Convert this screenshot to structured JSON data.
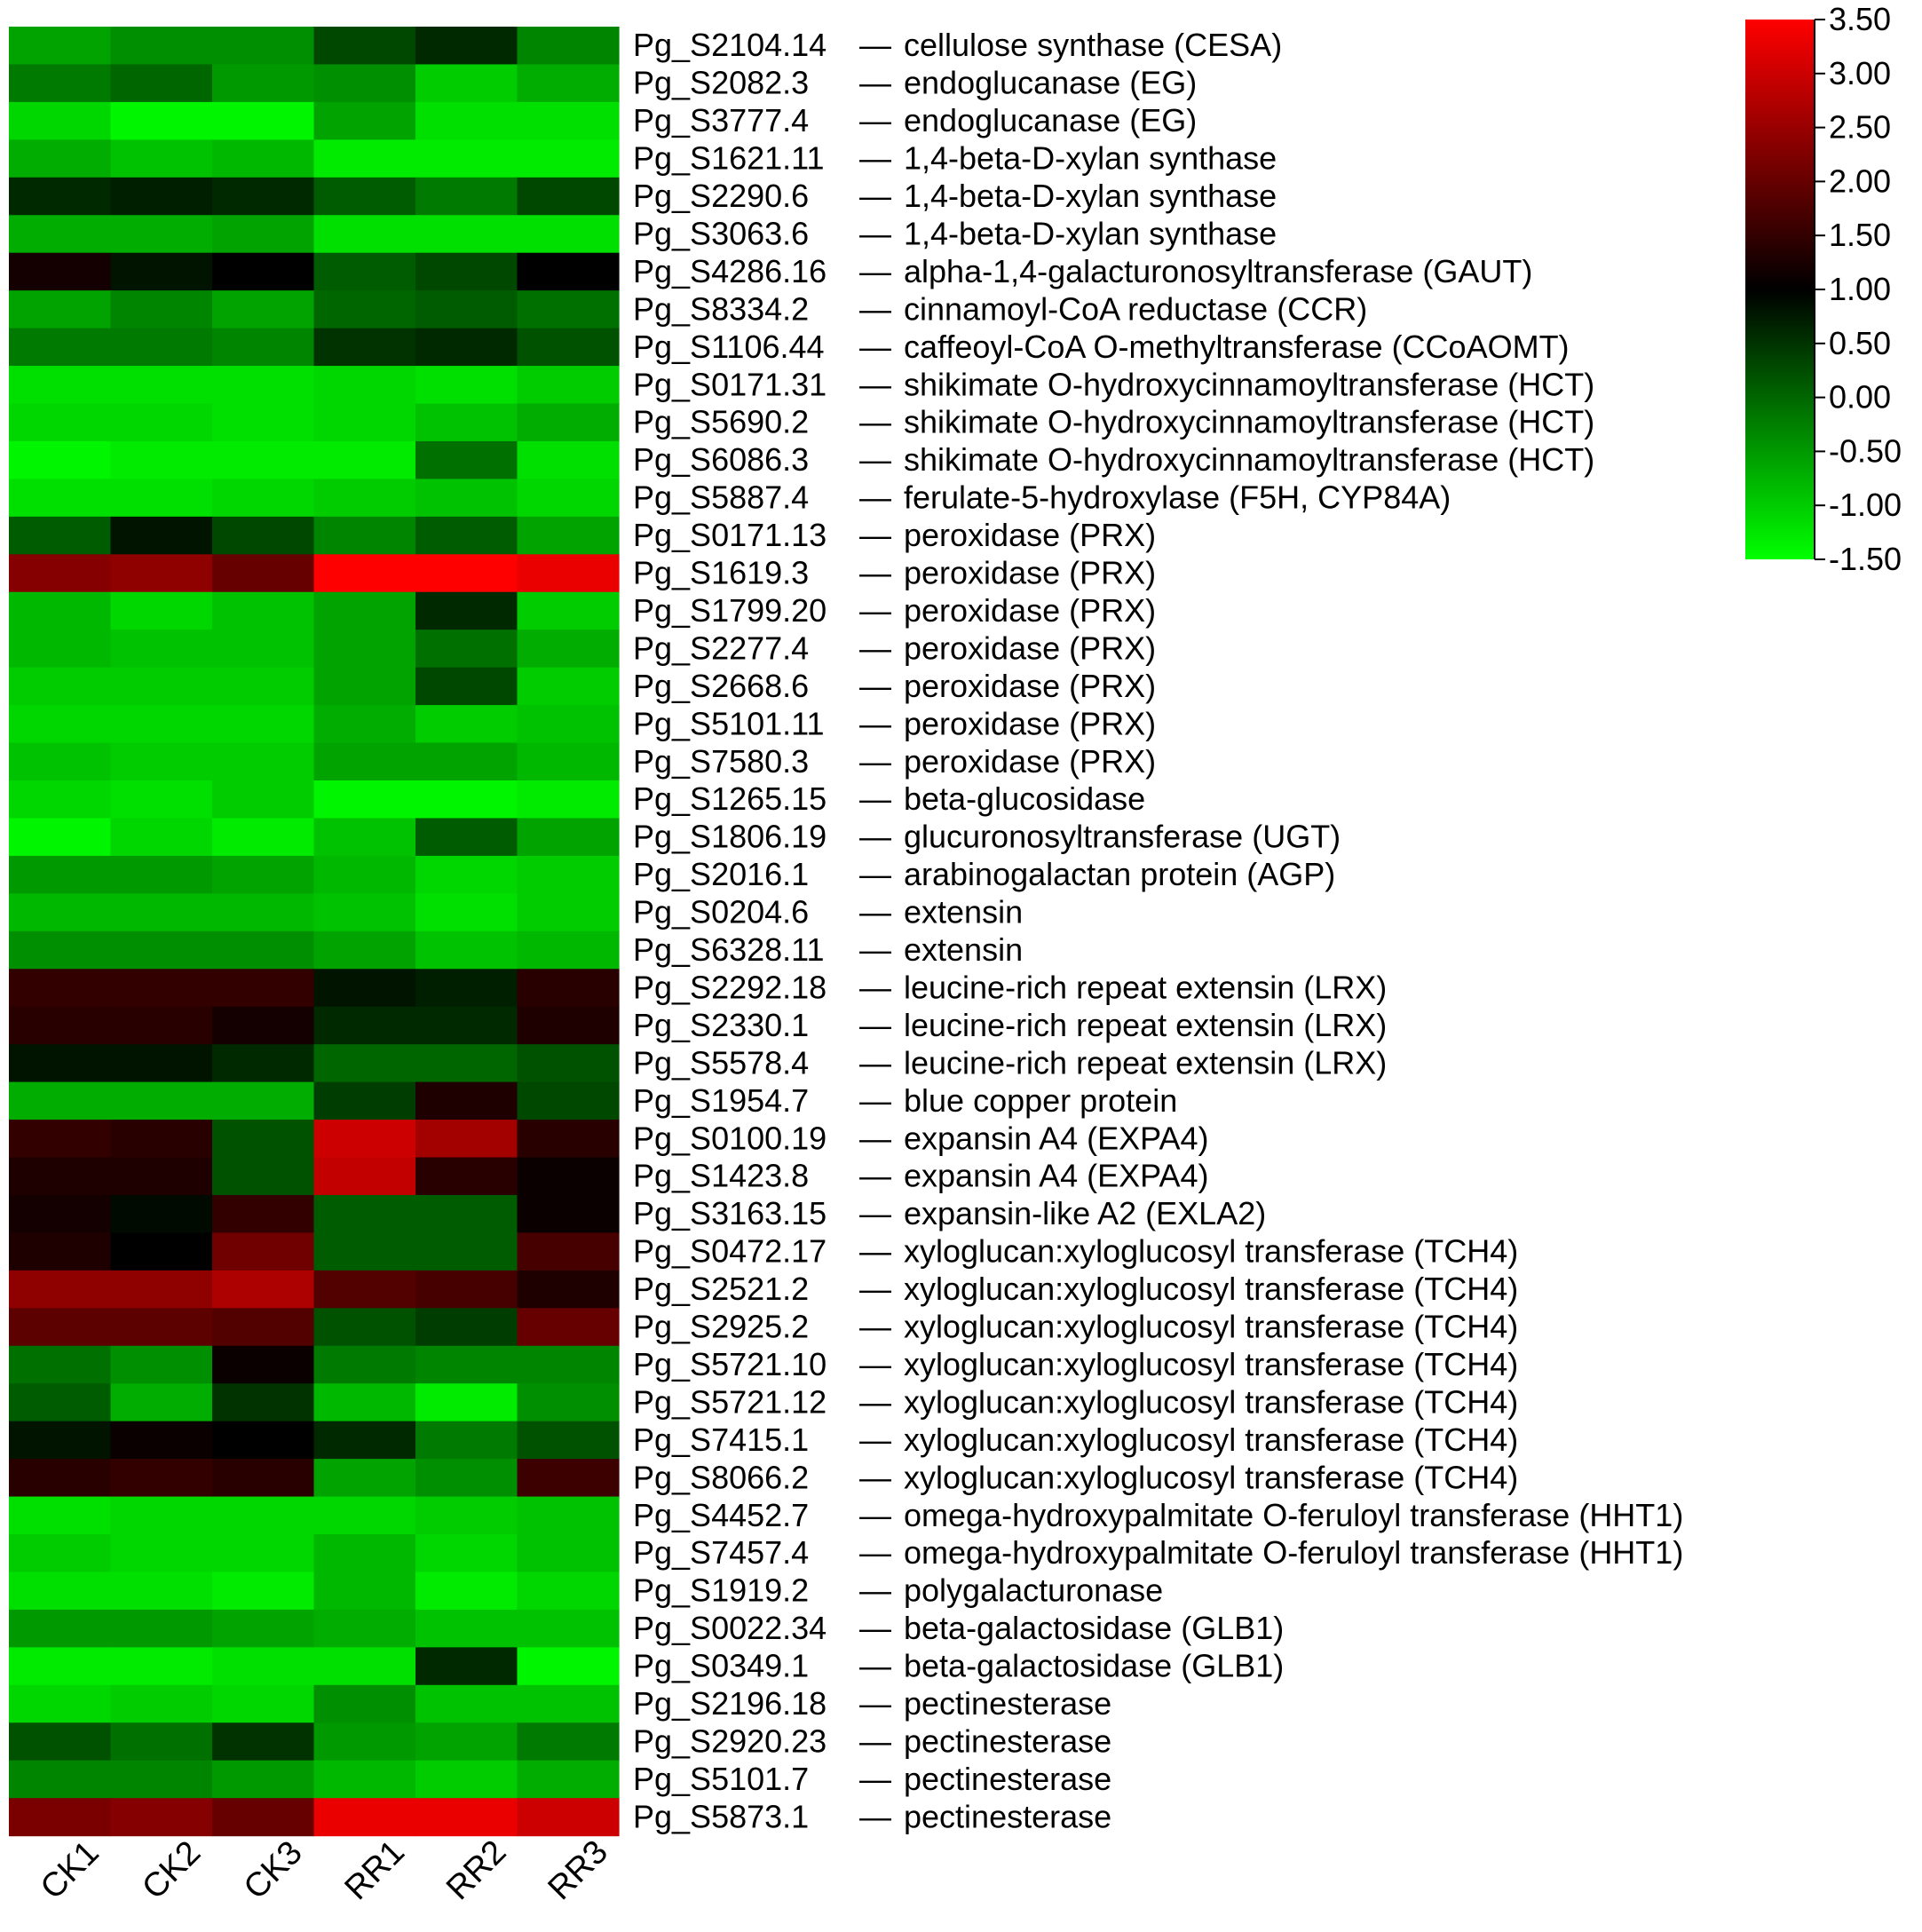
{
  "chart_data": {
    "type": "heatmap",
    "title": "",
    "xlabel": "",
    "ylabel": "",
    "columns": [
      "CK1",
      "CK2",
      "CK3",
      "RR1",
      "RR2",
      "RR3"
    ],
    "rows": [
      {
        "id": "Pg_S2104.14",
        "annotation": "cellulose synthase (CESA)",
        "values": [
          -0.6,
          -0.4,
          -0.4,
          0.3,
          0.6,
          -0.3
        ]
      },
      {
        "id": "Pg_S2082.3",
        "annotation": "endoglucanase (EG)",
        "values": [
          -0.2,
          0.0,
          -0.5,
          -0.4,
          -1.0,
          -0.7
        ]
      },
      {
        "id": "Pg_S3777.4",
        "annotation": "endoglucanase (EG)",
        "values": [
          -1.1,
          -1.4,
          -1.4,
          -0.6,
          -1.2,
          -1.2
        ]
      },
      {
        "id": "Pg_S1621.11",
        "annotation": "1,4-beta-D-xylan synthase",
        "values": [
          -0.7,
          -0.9,
          -0.8,
          -1.3,
          -1.3,
          -1.3
        ]
      },
      {
        "id": "Pg_S2290.6",
        "annotation": "1,4-beta-D-xylan synthase",
        "values": [
          0.6,
          0.7,
          0.6,
          0.1,
          -0.2,
          0.3
        ]
      },
      {
        "id": "Pg_S3063.6",
        "annotation": "1,4-beta-D-xylan synthase",
        "values": [
          -0.7,
          -0.7,
          -0.6,
          -1.2,
          -1.2,
          -1.2
        ]
      },
      {
        "id": "Pg_S4286.16",
        "annotation": "alpha-1,4-galacturonosyltransferase (GAUT)",
        "values": [
          1.2,
          0.8,
          1.0,
          0.1,
          0.3,
          1.0
        ]
      },
      {
        "id": "Pg_S8334.2",
        "annotation": "cinnamoyl-CoA reductase (CCR)",
        "values": [
          -0.6,
          -0.3,
          -0.6,
          0.0,
          0.1,
          -0.1
        ]
      },
      {
        "id": "Pg_S1106.44",
        "annotation": "caffeoyl-CoA O-methyltransferase (CCoAOMT)",
        "values": [
          -0.2,
          -0.2,
          -0.3,
          0.5,
          0.6,
          0.2
        ]
      },
      {
        "id": "Pg_S0171.31",
        "annotation": "shikimate O-hydroxycinnamoyltransferase (HCT)",
        "values": [
          -1.2,
          -1.2,
          -1.2,
          -1.1,
          -1.2,
          -1.0
        ]
      },
      {
        "id": "Pg_S5690.2",
        "annotation": "shikimate O-hydroxycinnamoyltransferase (HCT)",
        "values": [
          -1.1,
          -1.1,
          -1.2,
          -1.1,
          -0.9,
          -0.7
        ]
      },
      {
        "id": "Pg_S6086.3",
        "annotation": "shikimate O-hydroxycinnamoyltransferase (HCT)",
        "values": [
          -1.4,
          -1.3,
          -1.3,
          -1.3,
          -0.1,
          -1.2
        ]
      },
      {
        "id": "Pg_S5887.4",
        "annotation": "ferulate-5-hydroxylase (F5H, CYP84A)",
        "values": [
          -1.2,
          -1.2,
          -1.1,
          -1.0,
          -0.9,
          -1.1
        ]
      },
      {
        "id": "Pg_S0171.13",
        "annotation": "peroxidase (PRX)",
        "values": [
          0.1,
          0.8,
          0.3,
          -0.3,
          0.1,
          -0.6
        ]
      },
      {
        "id": "Pg_S1619.3",
        "annotation": "peroxidase (PRX)",
        "values": [
          2.3,
          2.4,
          2.0,
          3.5,
          3.5,
          3.3
        ]
      },
      {
        "id": "Pg_S1799.20",
        "annotation": "peroxidase (PRX)",
        "values": [
          -0.8,
          -1.1,
          -0.9,
          -0.6,
          0.6,
          -1.0
        ]
      },
      {
        "id": "Pg_S2277.4",
        "annotation": "peroxidase (PRX)",
        "values": [
          -0.8,
          -0.9,
          -0.9,
          -0.6,
          -0.1,
          -0.7
        ]
      },
      {
        "id": "Pg_S2668.6",
        "annotation": "peroxidase (PRX)",
        "values": [
          -1.0,
          -1.0,
          -1.0,
          -0.6,
          0.3,
          -1.0
        ]
      },
      {
        "id": "Pg_S5101.11",
        "annotation": "peroxidase (PRX)",
        "values": [
          -1.1,
          -1.1,
          -1.1,
          -0.7,
          -1.0,
          -0.9
        ]
      },
      {
        "id": "Pg_S7580.3",
        "annotation": "peroxidase (PRX)",
        "values": [
          -0.9,
          -1.0,
          -1.0,
          -0.6,
          -0.6,
          -0.8
        ]
      },
      {
        "id": "Pg_S1265.15",
        "annotation": "beta-glucosidase",
        "values": [
          -1.1,
          -1.2,
          -1.0,
          -1.4,
          -1.4,
          -1.3
        ]
      },
      {
        "id": "Pg_S1806.19",
        "annotation": "glucuronosyltransferase (UGT)",
        "values": [
          -1.4,
          -1.1,
          -1.3,
          -0.9,
          0.1,
          -0.6
        ]
      },
      {
        "id": "Pg_S2016.1",
        "annotation": "arabinogalactan protein (AGP)",
        "values": [
          -0.5,
          -0.5,
          -0.6,
          -0.8,
          -1.1,
          -1.0
        ]
      },
      {
        "id": "Pg_S0204.6",
        "annotation": "extensin",
        "values": [
          -0.8,
          -0.8,
          -0.8,
          -0.9,
          -1.2,
          -1.0
        ]
      },
      {
        "id": "Pg_S6328.11",
        "annotation": "extensin",
        "values": [
          -0.4,
          -0.4,
          -0.4,
          -0.6,
          -0.9,
          -0.8
        ]
      },
      {
        "id": "Pg_S2292.18",
        "annotation": "leucine-rich repeat extensin (LRX)",
        "values": [
          1.5,
          1.5,
          1.5,
          0.8,
          0.7,
          1.4
        ]
      },
      {
        "id": "Pg_S2330.1",
        "annotation": "leucine-rich repeat extensin (LRX)",
        "values": [
          1.4,
          1.4,
          1.2,
          0.6,
          0.6,
          1.3
        ]
      },
      {
        "id": "Pg_S5578.4",
        "annotation": "leucine-rich repeat extensin (LRX)",
        "values": [
          0.8,
          0.8,
          0.6,
          0.0,
          0.0,
          0.2
        ]
      },
      {
        "id": "Pg_S1954.7",
        "annotation": "blue copper protein",
        "values": [
          -0.7,
          -0.7,
          -0.7,
          0.4,
          1.3,
          0.3
        ]
      },
      {
        "id": "Pg_S0100.19",
        "annotation": "expansin A4 (EXPA4)",
        "values": [
          1.5,
          1.4,
          0.2,
          3.0,
          2.6,
          1.4
        ]
      },
      {
        "id": "Pg_S1423.8",
        "annotation": "expansin A4 (EXPA4)",
        "values": [
          1.3,
          1.3,
          0.2,
          2.9,
          1.4,
          1.1
        ]
      },
      {
        "id": "Pg_S3163.15",
        "annotation": "expansin-like A2 (EXLA2)",
        "values": [
          1.2,
          0.9,
          1.5,
          0.1,
          0.1,
          1.1
        ]
      },
      {
        "id": "Pg_S0472.17",
        "annotation": "xyloglucan:xyloglucosyl transferase (TCH4)",
        "values": [
          1.3,
          1.0,
          2.1,
          0.1,
          0.1,
          1.7
        ]
      },
      {
        "id": "Pg_S2521.2",
        "annotation": "xyloglucan:xyloglucosyl transferase (TCH4)",
        "values": [
          2.4,
          2.4,
          2.7,
          1.8,
          1.7,
          1.3
        ]
      },
      {
        "id": "Pg_S2925.2",
        "annotation": "xyloglucan:xyloglucosyl transferase (TCH4)",
        "values": [
          1.9,
          1.9,
          1.8,
          0.2,
          0.4,
          2.0
        ]
      },
      {
        "id": "Pg_S5721.10",
        "annotation": "xyloglucan:xyloglucosyl transferase (TCH4)",
        "values": [
          -0.1,
          -0.4,
          1.1,
          -0.2,
          -0.3,
          -0.3
        ]
      },
      {
        "id": "Pg_S5721.12",
        "annotation": "xyloglucan:xyloglucosyl transferase (TCH4)",
        "values": [
          0.1,
          -0.7,
          0.5,
          -0.8,
          -1.3,
          -0.4
        ]
      },
      {
        "id": "Pg_S7415.1",
        "annotation": "xyloglucan:xyloglucosyl transferase (TCH4)",
        "values": [
          0.8,
          1.1,
          1.0,
          0.6,
          -0.2,
          0.2
        ]
      },
      {
        "id": "Pg_S8066.2",
        "annotation": "xyloglucan:xyloglucosyl transferase (TCH4)",
        "values": [
          1.4,
          1.5,
          1.4,
          -0.6,
          -0.4,
          1.6
        ]
      },
      {
        "id": "Pg_S4452.7",
        "annotation": "omega-hydroxypalmitate O-feruloyl transferase (HHT1)",
        "values": [
          -1.2,
          -1.1,
          -1.1,
          -1.1,
          -1.0,
          -0.9
        ]
      },
      {
        "id": "Pg_S7457.4",
        "annotation": "omega-hydroxypalmitate O-feruloyl transferase (HHT1)",
        "values": [
          -1.0,
          -1.1,
          -1.1,
          -0.8,
          -1.1,
          -0.9
        ]
      },
      {
        "id": "Pg_S1919.2",
        "annotation": "polygalacturonase",
        "values": [
          -1.2,
          -1.2,
          -1.3,
          -0.8,
          -1.3,
          -1.1
        ]
      },
      {
        "id": "Pg_S0022.34",
        "annotation": "beta-galactosidase (GLB1)",
        "values": [
          -0.5,
          -0.5,
          -0.6,
          -0.7,
          -0.9,
          -0.9
        ]
      },
      {
        "id": "Pg_S0349.1",
        "annotation": "beta-galactosidase (GLB1)",
        "values": [
          -1.3,
          -1.3,
          -1.2,
          -1.2,
          0.6,
          -1.4
        ]
      },
      {
        "id": "Pg_S2196.18",
        "annotation": "pectinesterase",
        "values": [
          -1.1,
          -1.0,
          -1.1,
          -0.4,
          -0.9,
          -0.9
        ]
      },
      {
        "id": "Pg_S2920.23",
        "annotation": "pectinesterase",
        "values": [
          0.2,
          -0.1,
          0.5,
          -0.5,
          -0.6,
          -0.2
        ]
      },
      {
        "id": "Pg_S5101.7",
        "annotation": "pectinesterase",
        "values": [
          -0.3,
          -0.3,
          -0.5,
          -0.8,
          -1.0,
          -0.7
        ]
      },
      {
        "id": "Pg_S5873.1",
        "annotation": "pectinesterase",
        "values": [
          2.2,
          2.3,
          2.0,
          3.3,
          3.3,
          3.0
        ]
      }
    ],
    "color_scale": {
      "min": -1.5,
      "mid": 1.0,
      "max": 3.5,
      "low_color": "#00ff00",
      "mid_color": "#000000",
      "high_color": "#ff0000",
      "ticks": [
        "3.50",
        "3.00",
        "2.50",
        "2.00",
        "1.50",
        "1.00",
        "0.50",
        "0.00",
        "-0.50",
        "-1.00",
        "-1.50"
      ],
      "legend_position": "top-right"
    },
    "separator": "—",
    "grid": false
  }
}
